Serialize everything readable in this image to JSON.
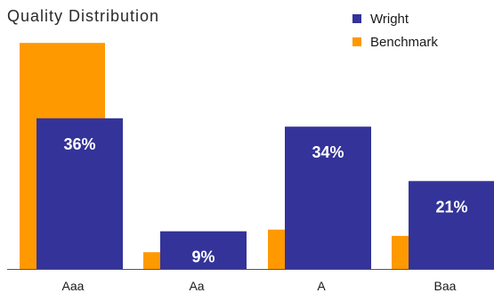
{
  "chart_data": {
    "type": "bar",
    "title": "Quality Distribution",
    "categories": [
      "Aaa",
      "Aa",
      "A",
      "Baa"
    ],
    "series": [
      {
        "name": "Benchmark",
        "color": "#FF9900",
        "values": [
          54,
          4,
          9.4,
          7.9
        ]
      },
      {
        "name": "Wright",
        "color": "#333399",
        "values": [
          36,
          9,
          34,
          21
        ],
        "labels": [
          "36%",
          "9%",
          "34%",
          "21%"
        ]
      }
    ],
    "legend_order": [
      "Wright",
      "Benchmark"
    ],
    "legend_position": "top-right",
    "ylim": [
      0,
      60
    ],
    "grid": false
  }
}
